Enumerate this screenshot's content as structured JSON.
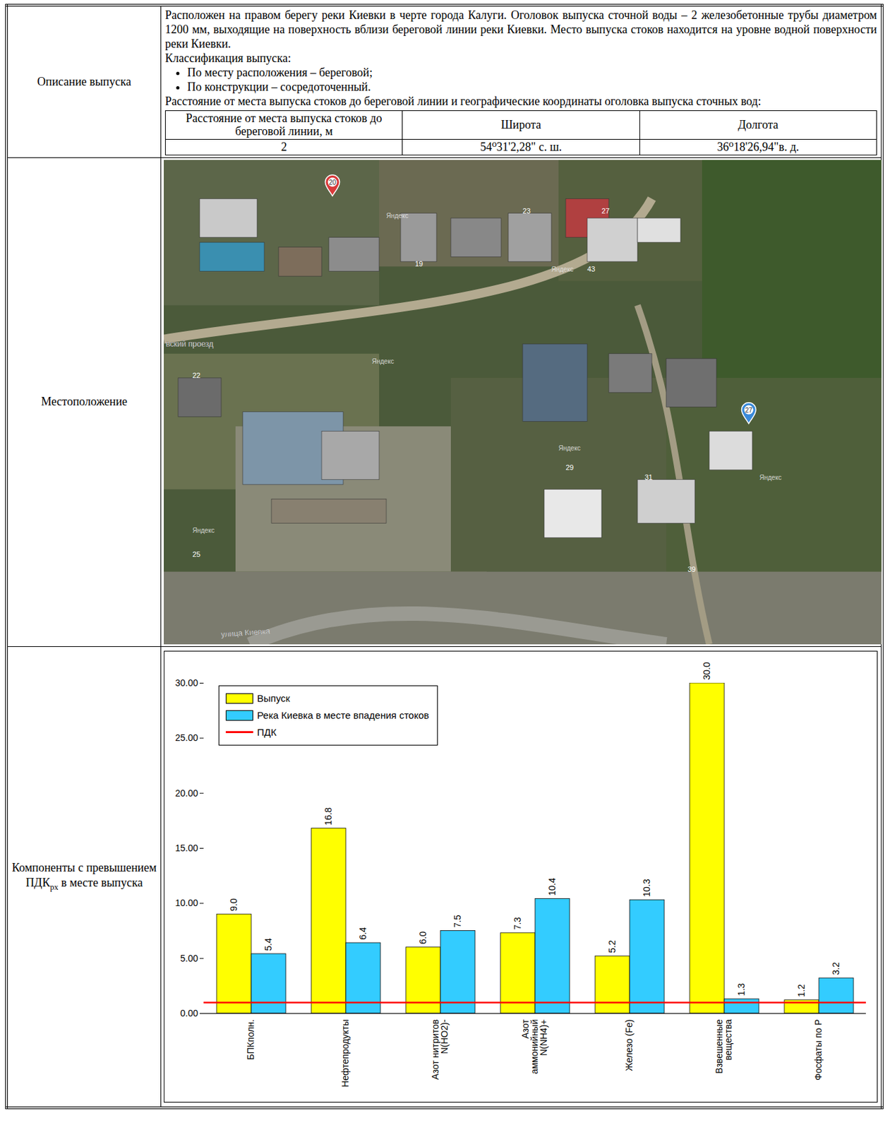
{
  "document": {
    "rows": [
      {
        "label": "Описание выпуска",
        "paragraph": "Расположен на правом берегу реки Киевки в черте города Калуги. Оголовок выпуска сточной воды – 2 железобетонные трубы диаметром 1200 мм, выходящие на поверхность вблизи береговой линии реки Киевки. Место выпуска стоков находится на уровне водной поверхности реки Киевки.",
        "classification_title": "Классификация выпуска:",
        "classification": [
          "По месту расположения – береговой;",
          "По конструкции – сосредоточенный."
        ],
        "table_title": "Расстояние от места выпуска стоков до береговой линии и географические координаты оголовка выпуска сточных вод:",
        "table": {
          "header": [
            "Расстояние от места выпуска стоков до береговой линии, м",
            "Широта",
            "Долгота"
          ],
          "rows": [
            [
              "2",
              "54⁰31'2,28\" с. ш.",
              "36⁰18'26,94\"в. д."
            ]
          ]
        }
      },
      {
        "label": "Местоположение",
        "map": {
          "markers": [
            "20",
            "27"
          ],
          "street_labels": [
            "вский проезд",
            "улица Киевка"
          ],
          "house_numbers": [
            "19",
            "23",
            "27",
            "43",
            "22",
            "25",
            "29",
            "31",
            "39"
          ],
          "watermark": "Яндекс"
        }
      },
      {
        "label": "Компоненты с превышением ПДК",
        "label_subscript": "рх",
        "label_end": "в месте выпуска"
      }
    ]
  },
  "chart_data": {
    "type": "bar",
    "categories": [
      "БПКполн.",
      "Нефтепродукты",
      "Азот нитритов\nN(HO2)-",
      "Азот\nаммонийный\nN(NH4)+",
      "Железо (Fe)",
      "Взвешенные\nвещества",
      "Фосфаты по Р"
    ],
    "series": [
      {
        "name": "Выпуск",
        "color": "#ffff00",
        "values": [
          9.0,
          16.8,
          6.0,
          7.3,
          5.2,
          30.0,
          1.2
        ],
        "value_labels": [
          "9.0",
          "16.8",
          "6.0",
          "7.3",
          "5.2",
          "30.0",
          "1.2"
        ]
      },
      {
        "name": "Река Киевка в месте впадения стоков",
        "color": "#33ccff",
        "values": [
          5.4,
          6.4,
          7.5,
          10.4,
          10.3,
          1.3,
          3.2
        ],
        "value_labels": [
          "5.4",
          "6.4",
          "7.5",
          "10.4",
          "10.3",
          "1.3",
          "3.2"
        ]
      },
      {
        "name": "ПДК",
        "type": "line",
        "color": "#ff0000",
        "values": [
          1,
          1,
          1,
          1,
          1,
          1,
          1
        ]
      }
    ],
    "ylim": [
      0,
      30
    ],
    "yticks": [
      {
        "value": 0,
        "label": "0.00"
      },
      {
        "value": 5,
        "label": "5.00"
      },
      {
        "value": 10,
        "label": "10.00"
      },
      {
        "value": 15,
        "label": "15.00"
      },
      {
        "value": 20,
        "label": "20.00"
      },
      {
        "value": 25,
        "label": "25.00"
      },
      {
        "value": 30,
        "label": "30.00"
      }
    ],
    "grid": false,
    "legend": "top-left",
    "data_labels": true
  }
}
